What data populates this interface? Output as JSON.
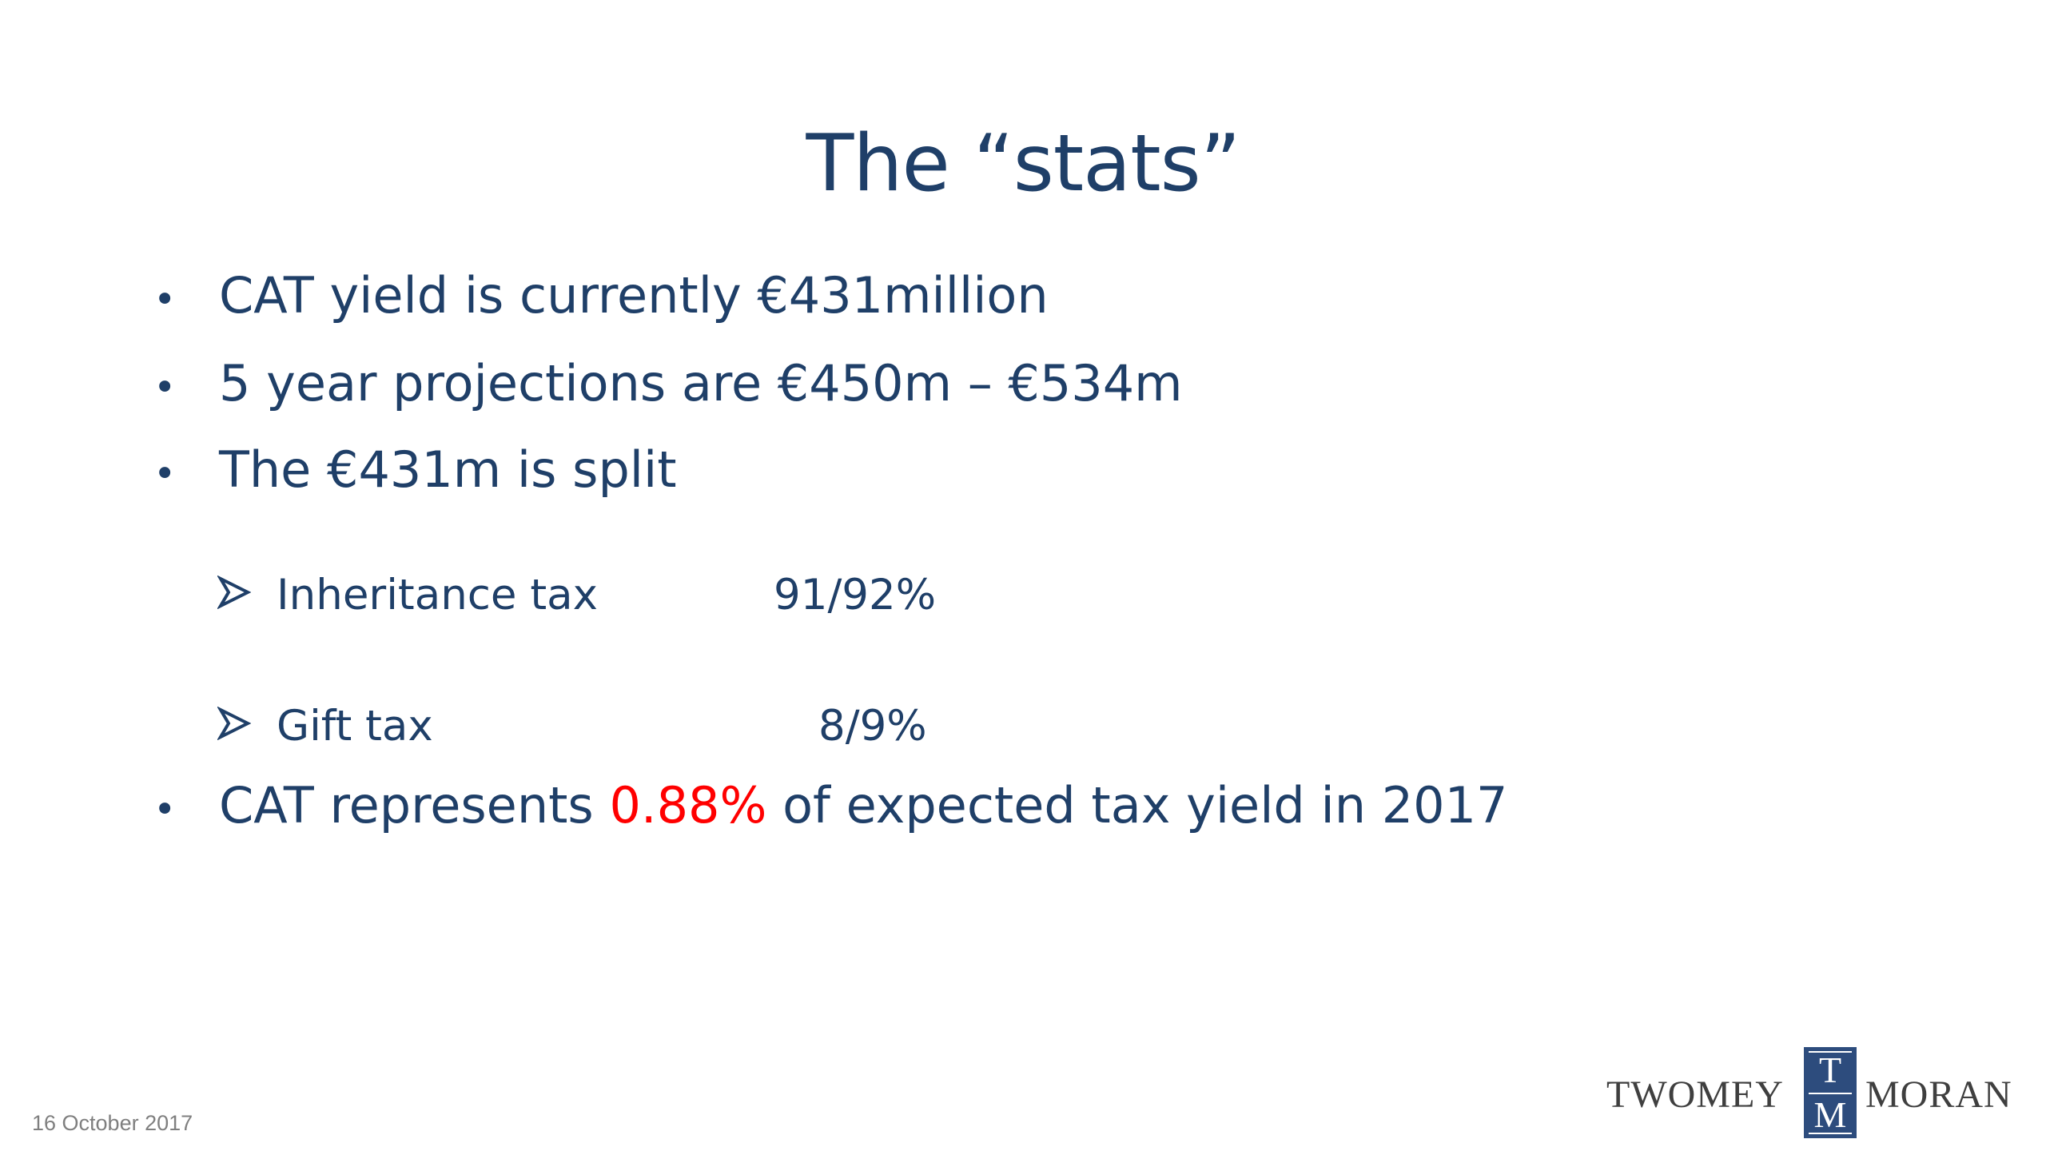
{
  "slide": {
    "title": "The “stats”",
    "bullets": [
      {
        "marker": "•",
        "text": "CAT yield is currently €431million"
      },
      {
        "marker": "•",
        "text": "5 year projections are €450m – €534m"
      },
      {
        "marker": "•",
        "text": "The €431m is split"
      }
    ],
    "sub_bullets": [
      {
        "label": "Inheritance tax",
        "value": "91/92%"
      },
      {
        "label": "Gift tax",
        "value": "8/9%"
      }
    ],
    "last_bullet": {
      "marker": "•",
      "before": "CAT represents ",
      "highlight": "0.88%",
      "after": " of expected tax yield in 2017"
    },
    "footer_date": "16 October 2017",
    "logo": {
      "left_word": "TWOMEY",
      "right_word": "MORAN",
      "mark_top_letter": "T",
      "mark_bottom_letter": "M"
    }
  },
  "colors": {
    "text": "#1f3f68",
    "highlight": "#ff0000",
    "footer": "#7f7f7f",
    "logo_mark": "#2d4c7d",
    "logo_text": "#3f3f3f"
  },
  "icons": {
    "sub_bullet": "arrowhead-icon"
  }
}
